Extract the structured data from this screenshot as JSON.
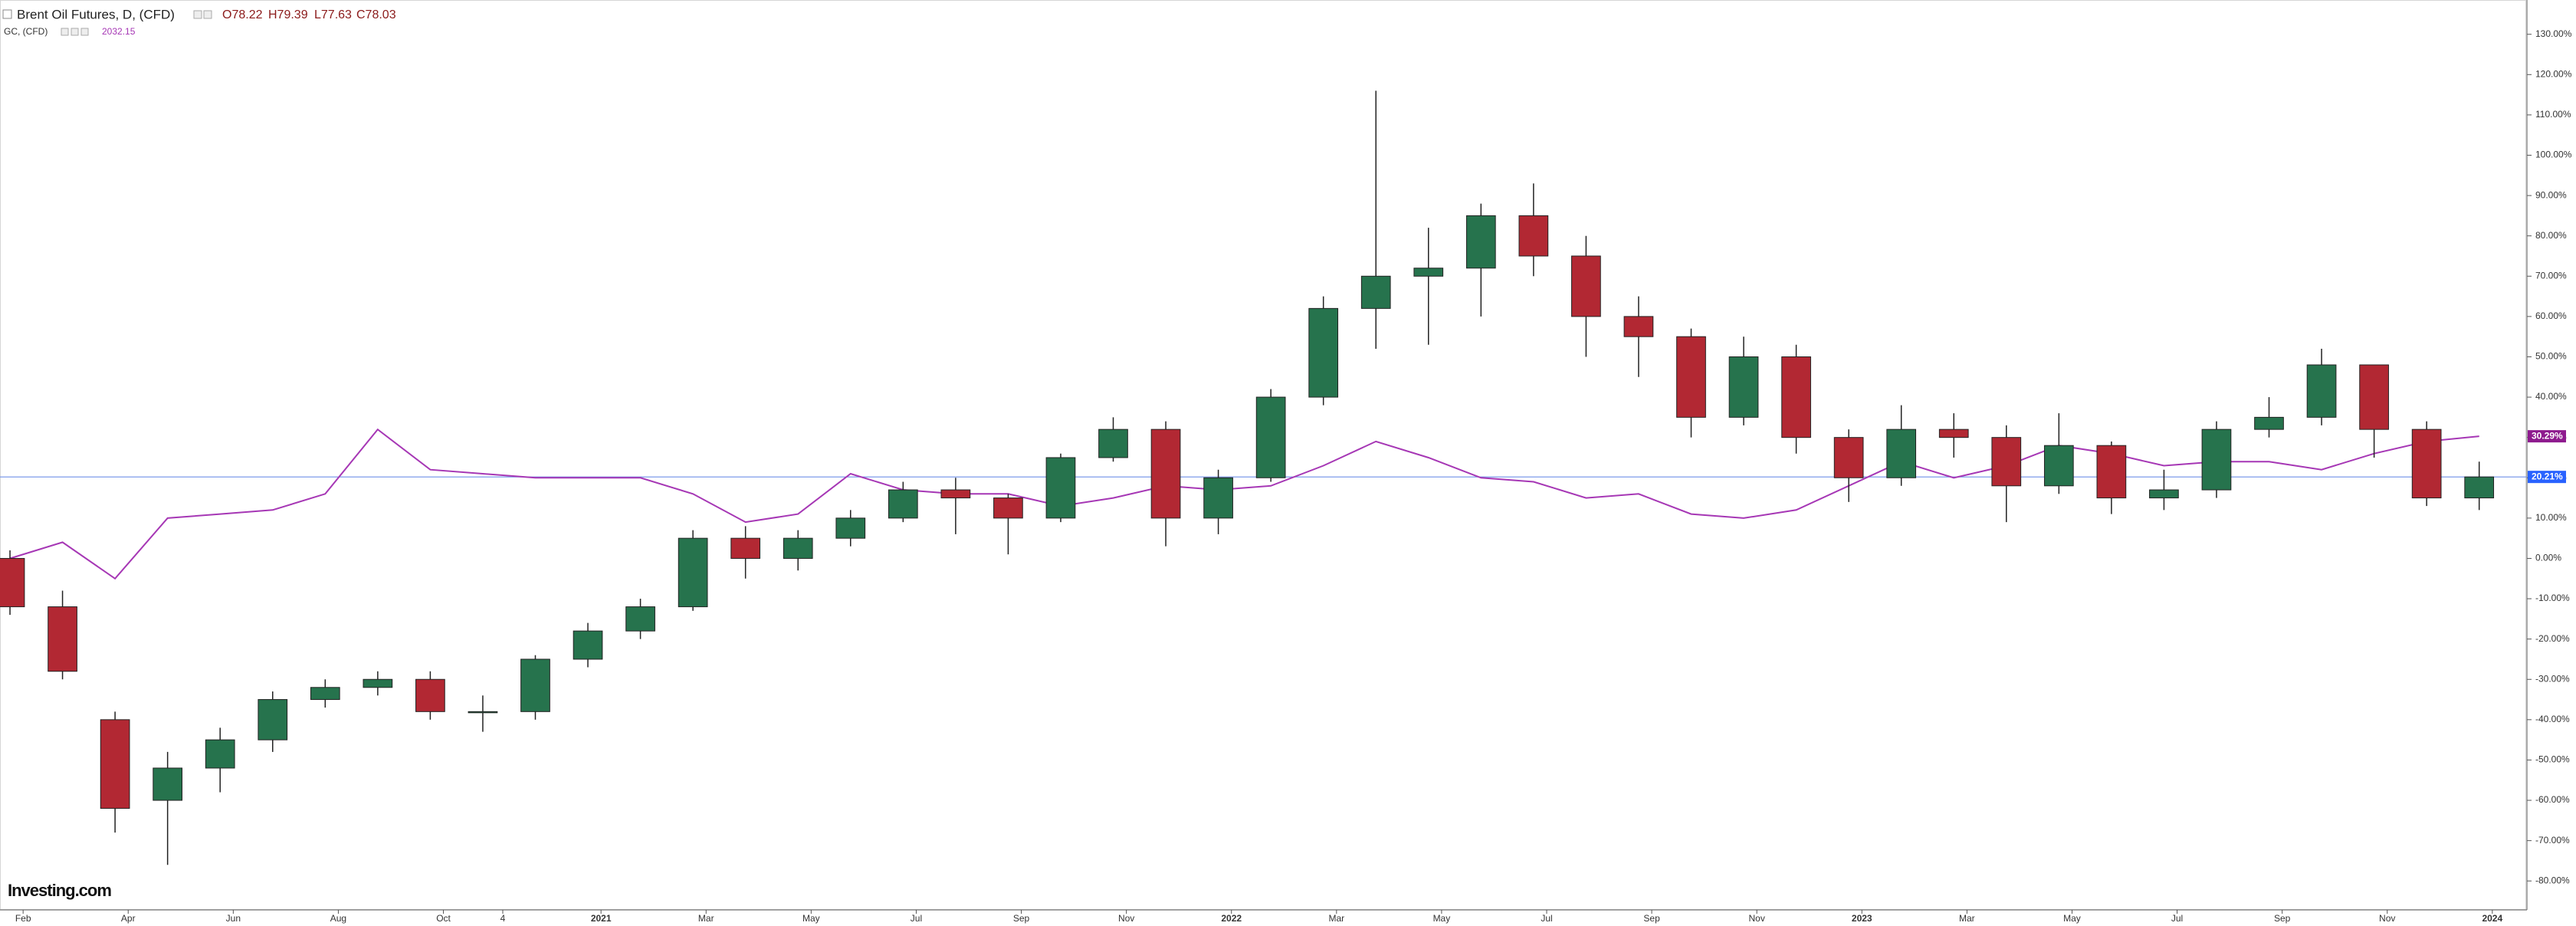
{
  "chart_data": {
    "type": "candlestick",
    "title": "Brent Oil Futures, D, (CFD)",
    "quote": [
      "O78.22",
      "H79.39",
      "L77.63",
      "C78.03"
    ],
    "logo": "Investing.com",
    "up_color": "#26734d",
    "down_color": "#b22833",
    "x": [
      0.75,
      1.75,
      2.75,
      3.75,
      4.75,
      5.75,
      6.75,
      7.75,
      8.75,
      9.75,
      10.75,
      11.75,
      12.75,
      13.75,
      14.75,
      15.75,
      16.75,
      17.75,
      18.75,
      19.75,
      20.75,
      21.75,
      22.75,
      23.75,
      24.75,
      25.75,
      26.75,
      27.75,
      28.75,
      29.75,
      30.75,
      31.75,
      32.75,
      33.75,
      34.75,
      35.75,
      36.75,
      37.75,
      38.75,
      39.75,
      40.75,
      41.75,
      42.75,
      43.75,
      44.75,
      45.75,
      46.75,
      47.75
    ],
    "open": [
      0,
      -12,
      -40,
      -60,
      -52,
      -45,
      -35,
      -32,
      -30,
      -38,
      -38,
      -25,
      -18,
      -12,
      5,
      0,
      5,
      10,
      17,
      15,
      10,
      25,
      32,
      10,
      20,
      40,
      62,
      70,
      72,
      85,
      75,
      60,
      55,
      35,
      50,
      30,
      20,
      32,
      30,
      18,
      28,
      15,
      17,
      32,
      35,
      48,
      32,
      15
    ],
    "high": [
      2,
      -8,
      -38,
      -48,
      -42,
      -33,
      -30,
      -28,
      -28,
      -34,
      -24,
      -16,
      -10,
      7,
      8,
      7,
      12,
      19,
      20,
      16,
      26,
      35,
      34,
      22,
      42,
      65,
      116,
      82,
      88,
      93,
      80,
      65,
      57,
      55,
      53,
      32,
      38,
      36,
      33,
      36,
      29,
      22,
      34,
      40,
      52,
      46,
      34,
      24
    ],
    "low": [
      -14,
      -30,
      -68,
      -76,
      -58,
      -48,
      -37,
      -34,
      -40,
      -43,
      -40,
      -27,
      -20,
      -13,
      -5,
      -3,
      3,
      9,
      6,
      1,
      9,
      24,
      3,
      6,
      19,
      38,
      52,
      53,
      60,
      70,
      50,
      45,
      30,
      33,
      26,
      14,
      18,
      25,
      9,
      16,
      11,
      12,
      15,
      30,
      33,
      25,
      13,
      12
    ],
    "close": [
      -12,
      -28,
      -62,
      -52,
      -45,
      -35,
      -32,
      -30,
      -38,
      -38,
      -25,
      -18,
      -12,
      5,
      0,
      5,
      10,
      17,
      15,
      10,
      25,
      32,
      10,
      20,
      40,
      62,
      70,
      72,
      85,
      75,
      60,
      55,
      35,
      50,
      30,
      20,
      32,
      30,
      18,
      28,
      15,
      17,
      32,
      35,
      48,
      32,
      15,
      20.21
    ],
    "last_label": {
      "value": 20.21,
      "label": "20.21%"
    },
    "last_color": "#2962ff",
    "overlay": {
      "type": "line",
      "name": "GC, (CFD)",
      "price": "2032.15",
      "color": "#a637b5",
      "values": [
        0,
        4,
        -5,
        10,
        11,
        12,
        16,
        32,
        22,
        21,
        20,
        20,
        20,
        16,
        9,
        11,
        21,
        17,
        16,
        16,
        13,
        15,
        18,
        17,
        18,
        23,
        29,
        25,
        20,
        19,
        15,
        16,
        11,
        10,
        12,
        18,
        24,
        20,
        23,
        28,
        26,
        23,
        24,
        24,
        22,
        26,
        29,
        30.29
      ],
      "last_label": {
        "value": 30.29,
        "label": "30.29%"
      },
      "last_color": "#8e1a8e"
    },
    "xlim": [
      0.56,
      48.63
    ],
    "ylim": [
      -86.8,
      138.5
    ],
    "xticks": [
      {
        "value": 1,
        "label": "Feb"
      },
      {
        "value": 3,
        "label": "Apr"
      },
      {
        "value": 5,
        "label": "Jun"
      },
      {
        "value": 7,
        "label": "Aug"
      },
      {
        "value": 9,
        "label": "Oct"
      },
      {
        "value": 10.13,
        "label": "4"
      },
      {
        "value": 12,
        "label": "2021"
      },
      {
        "value": 14,
        "label": "Mar"
      },
      {
        "value": 16,
        "label": "May"
      },
      {
        "value": 18,
        "label": "Jul"
      },
      {
        "value": 20,
        "label": "Sep"
      },
      {
        "value": 22,
        "label": "Nov"
      },
      {
        "value": 24,
        "label": "2022"
      },
      {
        "value": 26,
        "label": "Mar"
      },
      {
        "value": 28,
        "label": "May"
      },
      {
        "value": 30,
        "label": "Jul"
      },
      {
        "value": 32,
        "label": "Sep"
      },
      {
        "value": 34,
        "label": "Nov"
      },
      {
        "value": 36,
        "label": "2023"
      },
      {
        "value": 38,
        "label": "Mar"
      },
      {
        "value": 40,
        "label": "May"
      },
      {
        "value": 42,
        "label": "Jul"
      },
      {
        "value": 44,
        "label": "Sep"
      },
      {
        "value": 46,
        "label": "Nov"
      },
      {
        "value": 48,
        "label": "2024"
      }
    ],
    "yticks": [
      {
        "value": 130,
        "label": "130.00%"
      },
      {
        "value": 120,
        "label": "120.00%"
      },
      {
        "value": 110,
        "label": "110.00%"
      },
      {
        "value": 100,
        "label": "100.00%"
      },
      {
        "value": 90,
        "label": "90.00%"
      },
      {
        "value": 80,
        "label": "80.00%"
      },
      {
        "value": 70,
        "label": "70.00%"
      },
      {
        "value": 60,
        "label": "60.00%"
      },
      {
        "value": 50,
        "label": "50.00%"
      },
      {
        "value": 40,
        "label": "40.00%"
      },
      {
        "value": 30,
        "label": "30.00%"
      },
      {
        "value": 20,
        "label": "20.00%"
      },
      {
        "value": 10,
        "label": "10.00%"
      },
      {
        "value": 0,
        "label": "0.00%"
      },
      {
        "value": -10,
        "label": "-10.00%"
      },
      {
        "value": -20,
        "label": "-20.00%"
      },
      {
        "value": -30,
        "label": "-30.00%"
      },
      {
        "value": -40,
        "label": "-40.00%"
      },
      {
        "value": -50,
        "label": "-50.00%"
      },
      {
        "value": -60,
        "label": "-60.00%"
      },
      {
        "value": -70,
        "label": "-70.00%"
      },
      {
        "value": -80,
        "label": "-80.00%"
      }
    ]
  }
}
